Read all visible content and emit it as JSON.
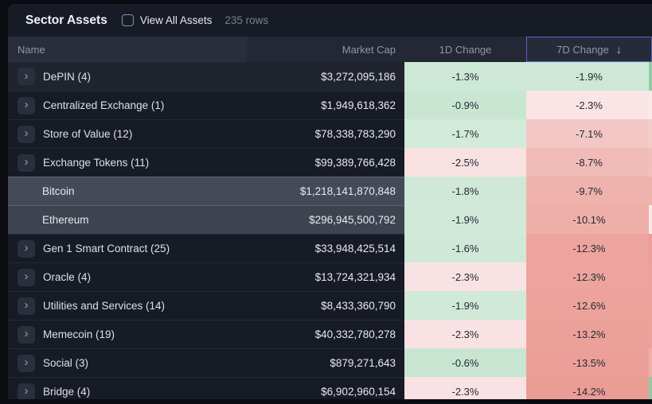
{
  "panel": {
    "title": "Sector Assets",
    "checkbox_label": "View All Assets",
    "rows_count": "235 rows"
  },
  "columns": {
    "name": "Name",
    "market_cap": "Market Cap",
    "change_1d": "1D Change",
    "change_7d": "7D Change",
    "sort_icon": "↓",
    "sorted_border_color": "#5b61c9"
  },
  "colors": {
    "page_bg": "#0b0c11",
    "panel_bg": "#171b25",
    "positive_light": "#cde8d6",
    "negative_light": "#f9e2e3",
    "negative_strong": "#eb9c95"
  },
  "rows": [
    {
      "kind": "sector",
      "name": "DePIN (4)",
      "market_cap": "$3,272,095,186",
      "d1": "-1.3%",
      "d1_bg": "#cde8d6",
      "d7": "-1.9%",
      "d7_bg": "#cde8d6",
      "strip": "#90cba6",
      "bg": "#20242f"
    },
    {
      "kind": "sector",
      "name": "Centralized Exchange (1)",
      "market_cap": "$1,949,618,362",
      "d1": "-0.9%",
      "d1_bg": "#c9e6d3",
      "d7": "-2.3%",
      "d7_bg": "#fae4e5",
      "strip": "#fbe9e9"
    },
    {
      "kind": "sector",
      "name": "Store of Value (12)",
      "market_cap": "$78,338,783,290",
      "d1": "-1.7%",
      "d1_bg": "#d2ead9",
      "d7": "-7.1%",
      "d7_bg": "#f3c8c4",
      "strip": "#f3cdc9"
    },
    {
      "kind": "sector",
      "name": "Exchange Tokens (11)",
      "market_cap": "$99,389,766,428",
      "d1": "-2.5%",
      "d1_bg": "#f9e1e2",
      "d7": "-8.7%",
      "d7_bg": "#f1bcb7",
      "strip": "#f1c0bb"
    },
    {
      "kind": "asset",
      "name": "Bitcoin",
      "market_cap": "$1,218,141,870,848",
      "d1": "-1.8%",
      "d1_bg": "#cfe8d7",
      "d7": "-9.7%",
      "d7_bg": "#efb2ac",
      "strip": "#efb3ad",
      "bg": "#454a58"
    },
    {
      "kind": "asset",
      "name": "Ethereum",
      "market_cap": "$296,945,500,792",
      "d1": "-1.9%",
      "d1_bg": "#d0e9d8",
      "d7": "-10.1%",
      "d7_bg": "#efafa9",
      "strip": "#fbe9e9",
      "bg": "#3e4350"
    },
    {
      "kind": "sector",
      "name": "Gen 1 Smart Contract (25)",
      "market_cap": "$33,948,425,514",
      "d1": "-1.6%",
      "d1_bg": "#cfe8d7",
      "d7": "-12.3%",
      "d7_bg": "#eda49e",
      "strip": "#ee9e98"
    },
    {
      "kind": "sector",
      "name": "Oracle (4)",
      "market_cap": "$13,724,321,934",
      "d1": "-2.3%",
      "d1_bg": "#f9e2e3",
      "d7": "-12.3%",
      "d7_bg": "#eda49e",
      "strip": "#eda29c"
    },
    {
      "kind": "sector",
      "name": "Utilities and Services (14)",
      "market_cap": "$8,433,360,790",
      "d1": "-1.9%",
      "d1_bg": "#d0e9d8",
      "d7": "-12.6%",
      "d7_bg": "#eda29c",
      "strip": "#eda29c"
    },
    {
      "kind": "sector",
      "name": "Memecoin (19)",
      "market_cap": "$40,332,780,278",
      "d1": "-2.3%",
      "d1_bg": "#f9e2e3",
      "d7": "-13.2%",
      "d7_bg": "#eca09a",
      "strip": "#eda29c"
    },
    {
      "kind": "sector",
      "name": "Social (3)",
      "market_cap": "$879,271,643",
      "d1": "-0.6%",
      "d1_bg": "#c7e5d1",
      "d7": "-13.5%",
      "d7_bg": "#ec9f98",
      "strip": "#f0aea8"
    },
    {
      "kind": "sector",
      "name": "Bridge (4)",
      "market_cap": "$6,902,960,154",
      "d1": "-2.3%",
      "d1_bg": "#f9e2e3",
      "d7": "-14.2%",
      "d7_bg": "#eb9c95",
      "strip": "#90cba6"
    }
  ]
}
